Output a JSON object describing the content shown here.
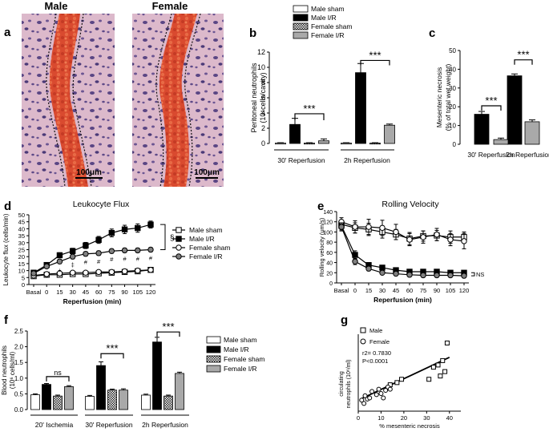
{
  "figure": {
    "panel_a": {
      "letter": "a",
      "titles": [
        "Male",
        "Female"
      ],
      "scale_bars": [
        "100μm",
        "100μm"
      ]
    },
    "colors": {
      "tissue_bg": "#d9b6c8",
      "vessel": "#d9472f",
      "nucleus": "#4b3a78",
      "grid": "#cccccc"
    }
  },
  "chart_data": [
    {
      "id": "b",
      "type": "bar",
      "letter": "b",
      "title": "",
      "ylabel": "Peritoneal neutrophils",
      "ylabel2": "(10⁶cells/cavity)",
      "ylim": [
        0,
        12
      ],
      "yticks": [
        0,
        2,
        4,
        6,
        8,
        10,
        12
      ],
      "categories": [
        "30' Reperfusion",
        "2h Reperfusion"
      ],
      "legend": [
        "Male sham",
        "Male I/R",
        "Female sham",
        "Female I/R"
      ],
      "series": [
        {
          "name": "Male sham",
          "values": [
            0.05,
            0.05
          ],
          "errors": [
            0.05,
            0.05
          ]
        },
        {
          "name": "Male I/R",
          "values": [
            2.5,
            9.3
          ],
          "errors": [
            0.8,
            1.2
          ]
        },
        {
          "name": "Female sham",
          "values": [
            0.05,
            0.05
          ],
          "errors": [
            0.05,
            0.05
          ]
        },
        {
          "name": "Female I/R",
          "values": [
            0.35,
            2.4
          ],
          "errors": [
            0.25,
            0.15
          ]
        }
      ],
      "annotations": [
        "***",
        "***"
      ]
    },
    {
      "id": "c",
      "type": "bar",
      "letter": "c",
      "title": "",
      "ylabel": "Mesenteric necrosis",
      "ylabel2": "(% of total wet weight)",
      "ylim": [
        0,
        50
      ],
      "yticks": [
        0,
        10,
        20,
        30,
        40,
        50
      ],
      "categories": [
        "30' Reperfusion",
        "2h Reperfusion"
      ],
      "series": [
        {
          "name": "Male",
          "values": [
            16,
            36.5
          ],
          "errors": [
            1.5,
            1.0
          ]
        },
        {
          "name": "Female",
          "values": [
            2.5,
            12
          ],
          "errors": [
            0.8,
            1.0
          ]
        }
      ],
      "annotations": [
        "***",
        "***"
      ]
    },
    {
      "id": "d",
      "type": "line",
      "letter": "d",
      "title": "Leukocyte Flux",
      "xlabel": "Reperfusion (min)",
      "ylabel": "Leukocyte flux (cells/min)",
      "ylim": [
        0,
        50
      ],
      "yticks": [
        0,
        5,
        10,
        15,
        20,
        25,
        30,
        35,
        40,
        45,
        50
      ],
      "categories": [
        "Basal",
        "0",
        "15",
        "30",
        "45",
        "60",
        "75",
        "90",
        "105",
        "120"
      ],
      "legend": [
        "Male sham",
        "Male I/R",
        "Female sham",
        "Female I/R"
      ],
      "series": [
        {
          "name": "Male sham",
          "values": [
            6,
            7,
            7,
            7.5,
            7.5,
            8,
            8.5,
            9,
            9.5,
            10.5
          ],
          "errors": [
            0.7,
            0.7,
            0.7,
            0.7,
            0.7,
            0.7,
            0.7,
            0.8,
            0.8,
            0.8
          ]
        },
        {
          "name": "Male I/R",
          "values": [
            8.5,
            14,
            21,
            24,
            28,
            32,
            37,
            39.5,
            40.5,
            43
          ],
          "errors": [
            1.0,
            1.5,
            1.8,
            2.0,
            2.2,
            2.5,
            2.8,
            3.0,
            3.0,
            2.5
          ]
        },
        {
          "name": "Female sham",
          "values": [
            6.5,
            7.5,
            8,
            8.5,
            8.5,
            9,
            9,
            9.5,
            10,
            10.5
          ],
          "errors": [
            0.5,
            0.5,
            0.5,
            0.5,
            0.5,
            0.5,
            0.5,
            0.5,
            0.5,
            0.5
          ]
        },
        {
          "name": "Female I/R",
          "values": [
            8,
            13,
            16.5,
            20,
            22,
            22.5,
            24,
            24.5,
            24.5,
            25
          ],
          "errors": [
            1.0,
            1.2,
            1.5,
            1.5,
            1.5,
            1.5,
            1.5,
            1.5,
            1.5,
            1.5
          ]
        }
      ],
      "annotations": [
        "+",
        "‡",
        "#",
        "#",
        "#",
        "#",
        "#",
        "#",
        "§"
      ]
    },
    {
      "id": "e",
      "type": "line",
      "letter": "e",
      "title": "Rolling Velocity",
      "xlabel": "Reperfusion (min)",
      "ylabel": "Rolling velocity (μm/s)",
      "ylim": [
        0,
        140
      ],
      "yticks": [
        0,
        20,
        40,
        60,
        80,
        100,
        120,
        140
      ],
      "categories": [
        "Basal",
        "0",
        "15",
        "30",
        "45",
        "60",
        "75",
        "90",
        "105",
        "120"
      ],
      "series": [
        {
          "name": "Male sham",
          "values": [
            115,
            108,
            105,
            100,
            95,
            87,
            92,
            93,
            90,
            90
          ],
          "errors": [
            8,
            10,
            12,
            12,
            10,
            12,
            10,
            10,
            12,
            10
          ]
        },
        {
          "name": "Male I/R",
          "values": [
            112,
            55,
            35,
            30,
            25,
            22,
            22,
            22,
            20,
            20
          ],
          "errors": [
            8,
            8,
            5,
            4,
            4,
            3,
            3,
            3,
            3,
            3
          ]
        },
        {
          "name": "Female sham",
          "values": [
            120,
            110,
            110,
            108,
            100,
            85,
            90,
            95,
            85,
            82
          ],
          "errors": [
            8,
            12,
            15,
            15,
            15,
            12,
            12,
            12,
            12,
            15
          ]
        },
        {
          "name": "Female I/R",
          "values": [
            110,
            42,
            28,
            20,
            18,
            16,
            15,
            15,
            15,
            14
          ],
          "errors": [
            8,
            6,
            4,
            3,
            3,
            2,
            2,
            2,
            2,
            2
          ]
        }
      ],
      "annotations": [
        "NS"
      ]
    },
    {
      "id": "f",
      "type": "bar",
      "letter": "f",
      "title": "",
      "ylabel": "Blood neutrophils",
      "ylabel2": "(10⁶ cells/ml)",
      "ylim": [
        0,
        2.5
      ],
      "yticks": [
        0.0,
        0.5,
        1.0,
        1.5,
        2.0,
        2.5
      ],
      "ytick_labels": [
        "0.0",
        "0.5",
        "1.0",
        "1.5",
        "2.0",
        "2.5"
      ],
      "categories": [
        "20' Ischemia",
        "30' Reperfusion",
        "2h Reperfusion"
      ],
      "legend": [
        "Male sham",
        "Male I/R",
        "Female sham",
        "Female I/R"
      ],
      "series": [
        {
          "name": "Male sham",
          "values": [
            0.47,
            0.42,
            0.46
          ],
          "errors": [
            0.03,
            0.03,
            0.03
          ]
        },
        {
          "name": "Male I/R",
          "values": [
            0.8,
            1.4,
            2.15
          ],
          "errors": [
            0.03,
            0.12,
            0.15
          ]
        },
        {
          "name": "Female sham",
          "values": [
            0.43,
            0.62,
            0.43
          ],
          "errors": [
            0.03,
            0.03,
            0.03
          ]
        },
        {
          "name": "Female I/R",
          "values": [
            0.73,
            0.62,
            1.15
          ],
          "errors": [
            0.03,
            0.04,
            0.04
          ]
        }
      ],
      "annotations": [
        "ns",
        "***",
        "***"
      ]
    },
    {
      "id": "g",
      "type": "scatter",
      "letter": "g",
      "title": "",
      "xlabel": "% mesenteric necrosis",
      "ylabel": "circulating",
      "ylabel2": "neutrophils (10⁶/ml)",
      "xlim": [
        0,
        45
      ],
      "ylim": [
        0,
        3.5
      ],
      "xticks": [
        0,
        10,
        20,
        30,
        40
      ],
      "legend": [
        "Male",
        "Female"
      ],
      "stats": [
        "r2= 0.7830",
        "P<0.0001"
      ],
      "series": [
        {
          "name": "Male",
          "x": [
            14,
            17,
            19,
            31,
            33,
            35,
            36,
            37,
            38,
            39
          ],
          "y": [
            1.2,
            1.3,
            1.45,
            1.45,
            2.0,
            2.1,
            1.6,
            2.3,
            1.8,
            3.1
          ]
        },
        {
          "name": "Female",
          "x": [
            1.5,
            2.5,
            3,
            4,
            5,
            6,
            8,
            9,
            10,
            11,
            12,
            13,
            14
          ],
          "y": [
            0.5,
            0.35,
            0.7,
            0.55,
            0.6,
            0.9,
            0.75,
            1.0,
            0.8,
            0.6,
            0.95,
            1.1,
            1.0
          ]
        }
      ],
      "fit": {
        "x": [
          1,
          40
        ],
        "y": [
          0.55,
          2.45
        ]
      }
    }
  ]
}
